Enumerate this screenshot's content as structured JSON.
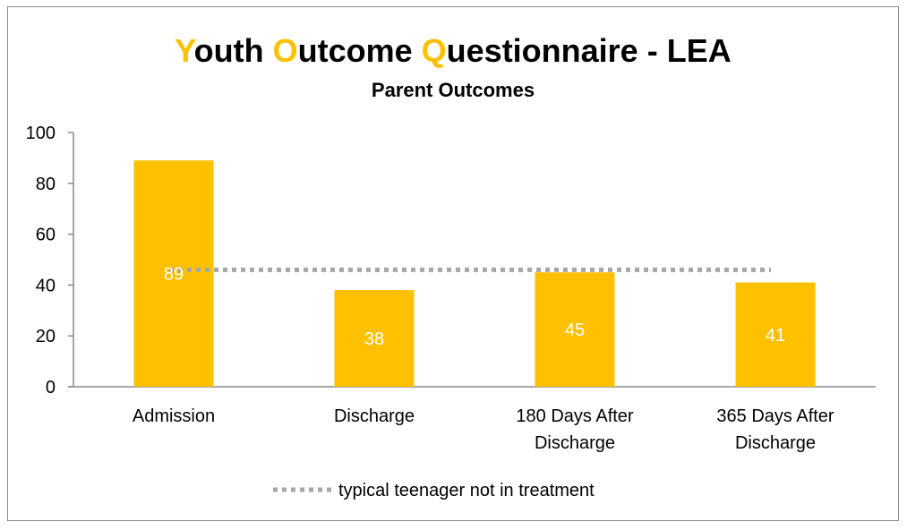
{
  "chart_data": {
    "type": "bar",
    "title_parts": [
      {
        "text": "Y",
        "highlight": true
      },
      {
        "text": "outh ",
        "highlight": false
      },
      {
        "text": "O",
        "highlight": true
      },
      {
        "text": "utcome ",
        "highlight": false
      },
      {
        "text": "Q",
        "highlight": true
      },
      {
        "text": "uestionnaire - LEA",
        "highlight": false
      }
    ],
    "subtitle": "Parent Outcomes",
    "categories": [
      [
        "Admission"
      ],
      [
        "Discharge"
      ],
      [
        "180 Days After",
        "Discharge"
      ],
      [
        "365 Days After",
        "Discharge"
      ]
    ],
    "values": [
      89,
      38,
      45,
      41
    ],
    "data_labels": [
      "89",
      "38",
      "45",
      "41"
    ],
    "ylim": [
      0,
      100
    ],
    "yticks": [
      0,
      20,
      40,
      60,
      80,
      100
    ],
    "reference_line": {
      "value": 46,
      "label": "typical teenager not in treatment"
    },
    "legend_position": "bottom",
    "colors": {
      "bar": "#ffc000",
      "reference": "#a6a6a6",
      "axis": "#8c8c8c",
      "title_highlight": "#ffc000"
    }
  }
}
